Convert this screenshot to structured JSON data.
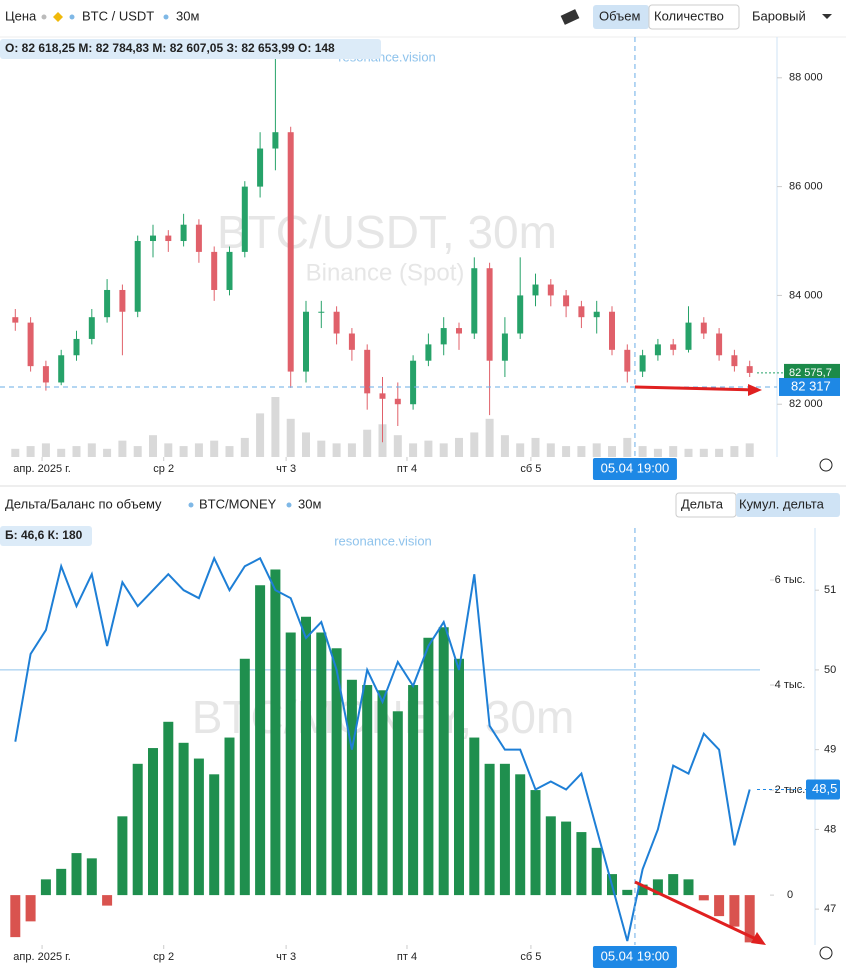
{
  "toolbar": {
    "price": "Цена",
    "symbol": "BTC / USDT",
    "interval": "30м",
    "volume_button": "Объем",
    "quantity_button": "Количество",
    "chart_style": "Баровый"
  },
  "lower_toolbar": {
    "title": "Дельта/Баланс по объему",
    "symbol": "BTC/MONEY",
    "interval": "30м",
    "delta_button": "Дельта",
    "cumulative_button": "Кумул. дельта"
  },
  "chart_data": [
    {
      "type": "candlestick",
      "legend_text": "О: 82 618,25 М: 82 784,83 М: 82 607,05 З: 82 653,99 О: 148",
      "watermark_site": "resonance.vision",
      "watermark_title": "BTC/USDT, 30m",
      "watermark_subtitle": "Binance (Spot)",
      "open": [
        83600,
        83500,
        82700,
        82400,
        82900,
        83200,
        83600,
        84100,
        83700,
        85000,
        85100,
        85000,
        85300,
        84800,
        84100,
        84800,
        86000,
        86700,
        87000,
        82600,
        83700,
        83700,
        83300,
        83000,
        82200,
        82100,
        82000,
        82800,
        83100,
        83400,
        83300,
        84500,
        82800,
        83300,
        84000,
        84200,
        84000,
        83800,
        83600,
        83700,
        83000,
        82600,
        82900,
        83100,
        83000,
        83500,
        83300,
        82900,
        82700
      ],
      "high": [
        83750,
        83600,
        82800,
        83000,
        83350,
        83750,
        84300,
        84200,
        85100,
        85300,
        85200,
        85500,
        85400,
        84900,
        84900,
        86100,
        87000,
        88400,
        87100,
        83900,
        83900,
        83800,
        83400,
        83100,
        82500,
        82400,
        82900,
        83300,
        83600,
        83500,
        84700,
        84600,
        83600,
        84700,
        84400,
        84300,
        84100,
        83900,
        83900,
        83800,
        83100,
        83000,
        83200,
        83200,
        83800,
        83600,
        83400,
        83000,
        82800
      ],
      "low": [
        83350,
        82600,
        82250,
        82350,
        82800,
        83100,
        83500,
        82900,
        83600,
        84700,
        84800,
        84900,
        84600,
        83900,
        84000,
        84700,
        85800,
        86300,
        82300,
        82400,
        83400,
        83100,
        82800,
        81900,
        81300,
        81600,
        81900,
        82700,
        82900,
        83000,
        83200,
        81800,
        82500,
        83200,
        83800,
        83800,
        83600,
        83400,
        83300,
        82900,
        82400,
        82500,
        82800,
        82900,
        82950,
        83200,
        82800,
        82600,
        82500
      ],
      "close": [
        83500,
        82700,
        82400,
        82900,
        83200,
        83600,
        84100,
        83700,
        85000,
        85100,
        85000,
        85300,
        84800,
        84100,
        84800,
        86000,
        86700,
        87000,
        82600,
        83700,
        83700,
        83300,
        83000,
        82200,
        82100,
        82000,
        82800,
        83100,
        83400,
        83300,
        84500,
        82800,
        83300,
        84000,
        84200,
        84000,
        83800,
        83600,
        83700,
        83000,
        82600,
        82900,
        83100,
        83000,
        83500,
        83300,
        82900,
        82700,
        82575.7
      ],
      "volume": [
        3,
        4,
        5,
        3,
        4,
        5,
        3,
        6,
        4,
        8,
        5,
        4,
        5,
        6,
        4,
        7,
        16,
        22,
        14,
        9,
        6,
        5,
        5,
        10,
        12,
        8,
        5,
        6,
        5,
        7,
        9,
        14,
        8,
        5,
        7,
        5,
        4,
        4,
        5,
        4,
        7,
        4,
        3,
        4,
        3,
        3,
        3,
        4,
        5
      ],
      "up_color": "#26a269",
      "down_color": "#e0606a",
      "volume_color": "#d9d9d9",
      "xlim": [
        -1,
        49
      ],
      "xticks": [
        {
          "value": 1.75,
          "label": "апр. 2025 г."
        },
        {
          "value": 9.7,
          "label": "ср 2"
        },
        {
          "value": 17.7,
          "label": "чт 3"
        },
        {
          "value": 25.6,
          "label": "пт 4"
        },
        {
          "value": 33.7,
          "label": "сб 5"
        }
      ],
      "ylim": [
        81030,
        88750
      ],
      "yticks": [
        {
          "value": 82000,
          "label": "82 000"
        },
        {
          "value": 84000,
          "label": "84 000"
        },
        {
          "value": 86000,
          "label": "86 000"
        },
        {
          "value": 88000,
          "label": "88 000"
        }
      ],
      "last_price": {
        "value": 82575.7,
        "label": "82 575,7"
      },
      "crosshair": {
        "x": 40.5,
        "x_label": "05.04 19:00",
        "y": 82317,
        "y_label": "82 317"
      }
    },
    {
      "type": "combo",
      "legend_text": "Б: 46,6 К: 180",
      "watermark_site": "resonance.vision",
      "watermark_title": "BTC/MONEY, 30m",
      "series": [
        {
          "name": "Кумул. дельта",
          "kind": "bar",
          "color": "#1f8f4e",
          "negative_color": "#d9534f",
          "values": [
            -800,
            -500,
            300,
            500,
            800,
            700,
            -200,
            1500,
            2500,
            2800,
            3300,
            2900,
            2600,
            2300,
            3000,
            4500,
            5900,
            6200,
            5000,
            5300,
            5000,
            4700,
            4100,
            4000,
            3900,
            3500,
            4000,
            4900,
            5100,
            4500,
            3000,
            2500,
            2500,
            2300,
            2000,
            1500,
            1400,
            1200,
            900,
            400,
            100,
            200,
            300,
            400,
            300,
            -100,
            -400,
            -600,
            -900
          ]
        },
        {
          "name": "Баланс",
          "kind": "line",
          "axis": "y2",
          "color": "#1e7fd6",
          "values": [
            49.1,
            50.2,
            50.5,
            51.3,
            50.8,
            51.2,
            50.3,
            51.1,
            50.8,
            51.0,
            51.2,
            51.0,
            50.9,
            51.4,
            51.0,
            51.3,
            51.4,
            51.0,
            50.9,
            50.4,
            50.6,
            50.0,
            49.0,
            50.0,
            49.6,
            50.1,
            49.8,
            50.3,
            50.6,
            50.0,
            51.2,
            49.3,
            49.0,
            49.0,
            48.5,
            48.6,
            48.5,
            48.7,
            48.0,
            47.3,
            46.6,
            47.5,
            48.0,
            48.8,
            48.7,
            49.2,
            49.0,
            47.8,
            48.5
          ]
        }
      ],
      "xlim": [
        -1,
        49
      ],
      "xticks": [
        {
          "value": 1.75,
          "label": "апр. 2025 г."
        },
        {
          "value": 9.7,
          "label": "ср 2"
        },
        {
          "value": 17.7,
          "label": "чт 3"
        },
        {
          "value": 25.6,
          "label": "пт 4"
        },
        {
          "value": 33.7,
          "label": "сб 5"
        }
      ],
      "ylim": [
        -950,
        6990
      ],
      "yticks": [
        0,
        {
          "value": 2000,
          "label": "2 тыс."
        },
        {
          "value": 4000,
          "label": "4 тыс."
        },
        {
          "value": 6000,
          "label": "6 тыс."
        }
      ],
      "y2lim": [
        46.55,
        51.78
      ],
      "y2ticks": [
        47,
        48,
        49,
        50,
        51
      ],
      "y2_reference": 50,
      "last_value": {
        "value": 48.5,
        "label": "48,5"
      },
      "crosshair": {
        "x": 40.5,
        "x_label": "05.04 19:00"
      }
    }
  ]
}
